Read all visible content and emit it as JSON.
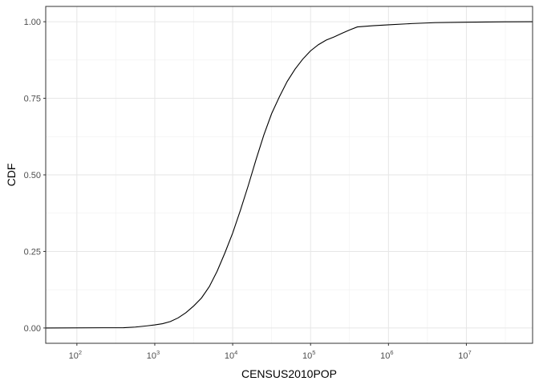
{
  "chart_data": {
    "type": "line",
    "subtype": "empirical-cdf (step)",
    "title": "",
    "xlabel": "CENSUS2010POP",
    "ylabel": "CDF",
    "x_scale": "log10",
    "xlim_log10": [
      1.6,
      7.85
    ],
    "ylim": [
      -0.05,
      1.05
    ],
    "x_ticks": [
      {
        "base": "10",
        "exp": "2",
        "value": 100
      },
      {
        "base": "10",
        "exp": "3",
        "value": 1000
      },
      {
        "base": "10",
        "exp": "4",
        "value": 10000
      },
      {
        "base": "10",
        "exp": "5",
        "value": 100000
      },
      {
        "base": "10",
        "exp": "6",
        "value": 1000000
      },
      {
        "base": "10",
        "exp": "7",
        "value": 10000000
      }
    ],
    "y_ticks": [
      "0.00",
      "0.25",
      "0.50",
      "0.75",
      "1.00"
    ],
    "y_tick_values": [
      0,
      0.25,
      0.5,
      0.75,
      1
    ],
    "grid": true,
    "series": [
      {
        "name": "CDF",
        "color": "#000000",
        "points_log10x": [
          [
            1.6,
            0.0
          ],
          [
            2.6,
            0.001
          ],
          [
            2.75,
            0.003
          ],
          [
            2.9,
            0.007
          ],
          [
            3.0,
            0.01
          ],
          [
            3.1,
            0.014
          ],
          [
            3.2,
            0.021
          ],
          [
            3.3,
            0.033
          ],
          [
            3.4,
            0.05
          ],
          [
            3.5,
            0.072
          ],
          [
            3.6,
            0.098
          ],
          [
            3.7,
            0.135
          ],
          [
            3.8,
            0.185
          ],
          [
            3.9,
            0.245
          ],
          [
            4.0,
            0.31
          ],
          [
            4.1,
            0.385
          ],
          [
            4.2,
            0.465
          ],
          [
            4.3,
            0.55
          ],
          [
            4.4,
            0.63
          ],
          [
            4.5,
            0.7
          ],
          [
            4.6,
            0.755
          ],
          [
            4.7,
            0.805
          ],
          [
            4.8,
            0.845
          ],
          [
            4.9,
            0.878
          ],
          [
            5.0,
            0.905
          ],
          [
            5.1,
            0.925
          ],
          [
            5.2,
            0.94
          ],
          [
            5.3,
            0.95
          ],
          [
            5.4,
            0.962
          ],
          [
            5.5,
            0.973
          ],
          [
            5.6,
            0.983
          ],
          [
            5.8,
            0.987
          ],
          [
            6.0,
            0.99
          ],
          [
            6.3,
            0.994
          ],
          [
            6.6,
            0.997
          ],
          [
            7.0,
            0.9985
          ],
          [
            7.5,
            0.9997
          ],
          [
            7.85,
            1.0
          ]
        ]
      }
    ]
  }
}
